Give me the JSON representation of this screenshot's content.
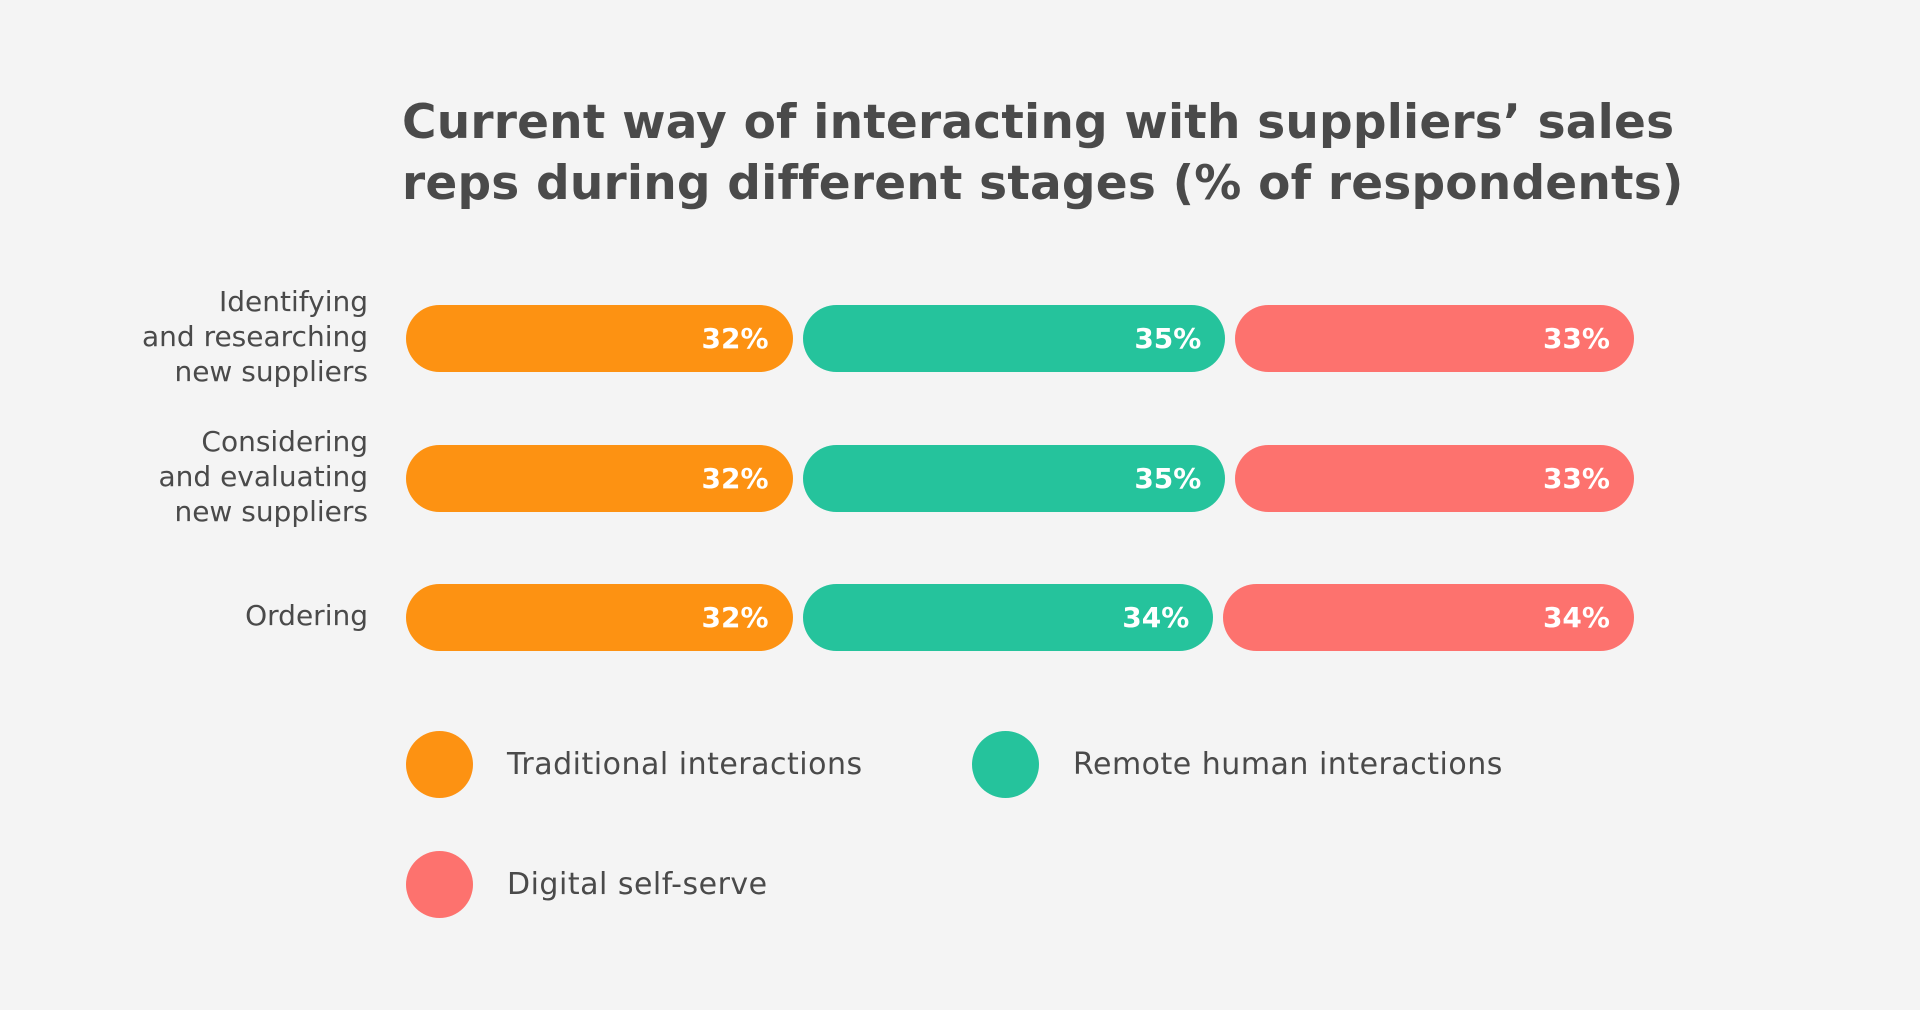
{
  "chart_data": {
    "type": "bar",
    "stacked": true,
    "orientation": "horizontal",
    "title_lines": [
      "Current way of interacting with suppliers’ sales",
      "reps during different stages (% of respondents)"
    ],
    "categories": [
      [
        "Identifying",
        "and researching",
        "new suppliers"
      ],
      [
        "Considering",
        "and evaluating",
        "new suppliers"
      ],
      [
        "Ordering"
      ]
    ],
    "series": [
      {
        "name": "Traditional interactions",
        "color": "#fd9212",
        "values": [
          32,
          32,
          32
        ],
        "labels": [
          "32%",
          "32%",
          "32%"
        ]
      },
      {
        "name": "Remote human interactions",
        "color": "#25c39c",
        "values": [
          35,
          35,
          34
        ],
        "labels": [
          "35%",
          "35%",
          "34%"
        ]
      },
      {
        "name": "Digital self-serve",
        "color": "#fd726e",
        "values": [
          33,
          33,
          34
        ],
        "labels": [
          "33%",
          "33%",
          "34%"
        ]
      }
    ],
    "legend_position": "bottom-left",
    "grid": false
  }
}
